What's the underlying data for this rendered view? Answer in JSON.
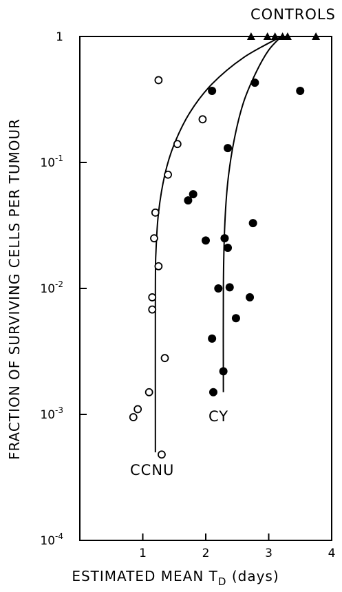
{
  "chart_data": {
    "type": "scatter",
    "xlabel_main": "ESTIMATED MEAN  T",
    "xlabel_sub": "D",
    "xlabel_unit": "(days)",
    "ylabel": "FRACTION OF SURVIVING CELLS PER TUMOUR",
    "xlim": [
      0,
      4
    ],
    "ylim": [
      0.0001,
      1
    ],
    "yscale": "log",
    "x_ticks": [
      {
        "value": 1,
        "label": "1"
      },
      {
        "value": 2,
        "label": "2"
      },
      {
        "value": 3,
        "label": "3"
      },
      {
        "value": 4,
        "label": "4"
      }
    ],
    "y_ticks": [
      {
        "value": 1,
        "base": "1",
        "exp": ""
      },
      {
        "value": 0.1,
        "base": "10",
        "exp": "-1"
      },
      {
        "value": 0.01,
        "base": "10",
        "exp": "-2"
      },
      {
        "value": 0.001,
        "base": "10",
        "exp": "-3"
      },
      {
        "value": 0.0001,
        "base": "10",
        "exp": "-4"
      }
    ],
    "labels": {
      "controls": "CONTROLS",
      "ccnu": "CCNU",
      "cy": "CY"
    },
    "series": [
      {
        "name": "CCNU",
        "marker": "open-circle",
        "points": [
          [
            1.25,
            0.45
          ],
          [
            1.95,
            0.22
          ],
          [
            1.55,
            0.14
          ],
          [
            1.4,
            0.08
          ],
          [
            1.2,
            0.04
          ],
          [
            1.18,
            0.025
          ],
          [
            1.25,
            0.015
          ],
          [
            1.15,
            0.0085
          ],
          [
            1.15,
            0.0068
          ],
          [
            1.35,
            0.0028
          ],
          [
            1.1,
            0.0015
          ],
          [
            0.92,
            0.0011
          ],
          [
            0.85,
            0.00095
          ],
          [
            1.3,
            0.00048
          ]
        ]
      },
      {
        "name": "CY",
        "marker": "filled-circle",
        "points": [
          [
            2.1,
            0.37
          ],
          [
            2.78,
            0.43
          ],
          [
            3.5,
            0.37
          ],
          [
            2.35,
            0.13
          ],
          [
            1.8,
            0.056
          ],
          [
            1.72,
            0.05
          ],
          [
            2.75,
            0.033
          ],
          [
            2.0,
            0.024
          ],
          [
            2.3,
            0.025
          ],
          [
            2.35,
            0.021
          ],
          [
            2.2,
            0.01
          ],
          [
            2.38,
            0.0102
          ],
          [
            2.7,
            0.0085
          ],
          [
            2.48,
            0.0058
          ],
          [
            2.1,
            0.004
          ],
          [
            2.28,
            0.0022
          ],
          [
            2.12,
            0.0015
          ]
        ]
      },
      {
        "name": "Controls",
        "marker": "filled-triangle",
        "points": [
          [
            2.72,
            1
          ],
          [
            2.98,
            1
          ],
          [
            3.1,
            1
          ],
          [
            3.22,
            1
          ],
          [
            3.3,
            1
          ],
          [
            3.75,
            1
          ]
        ]
      }
    ],
    "fitted_curves": [
      {
        "name": "CCNU",
        "points": [
          [
            1.2,
            0.0005
          ],
          [
            1.2,
            0.01
          ],
          [
            1.21,
            0.02
          ],
          [
            1.25,
            0.04
          ],
          [
            1.35,
            0.08
          ],
          [
            1.5,
            0.14
          ],
          [
            1.75,
            0.25
          ],
          [
            2.1,
            0.42
          ],
          [
            2.6,
            0.68
          ],
          [
            3.2,
            1
          ]
        ]
      },
      {
        "name": "CY",
        "points": [
          [
            2.28,
            0.0015
          ],
          [
            2.28,
            0.01
          ],
          [
            2.3,
            0.03
          ],
          [
            2.35,
            0.07
          ],
          [
            2.45,
            0.15
          ],
          [
            2.6,
            0.3
          ],
          [
            2.8,
            0.52
          ],
          [
            3.0,
            0.78
          ],
          [
            3.2,
            1
          ]
        ]
      }
    ]
  }
}
